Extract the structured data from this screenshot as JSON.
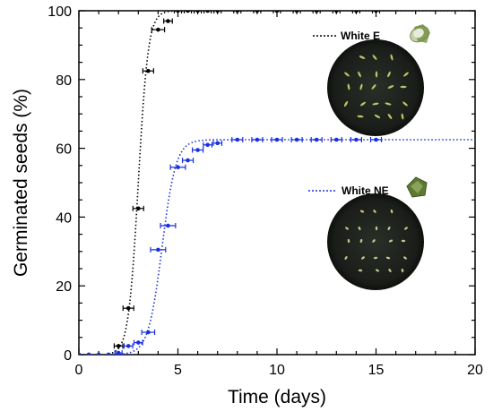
{
  "chart_data": {
    "type": "scatter",
    "xlabel": "Time (days)",
    "ylabel": "Germinated seeds (%)",
    "xlim": [
      0,
      20
    ],
    "ylim": [
      0,
      100
    ],
    "x_ticks": [
      0,
      5,
      10,
      15,
      20
    ],
    "y_ticks": [
      0,
      20,
      40,
      60,
      80,
      100
    ],
    "grid": false,
    "legend_position": "right",
    "series": [
      {
        "name": "White E",
        "color": "#000000",
        "line_style": "dotted",
        "fit_plateau": 100,
        "fit_midpoint": 3.0,
        "fit_slope": 0.25,
        "x": [
          0,
          0.5,
          1,
          1.5,
          2,
          2.5,
          3,
          3.5,
          4,
          4.5,
          5,
          5.5,
          6,
          6.5,
          7,
          8,
          9,
          10,
          11,
          12,
          13,
          14,
          15
        ],
        "y": [
          0,
          0,
          0,
          0,
          2.5,
          13.5,
          42.5,
          82.5,
          94.5,
          97,
          100,
          100,
          100,
          100,
          100,
          100,
          100,
          100,
          100,
          100,
          100,
          100,
          100
        ],
        "error": [
          0,
          0,
          0,
          0,
          0.4,
          0.5,
          0.5,
          0.5,
          0.6,
          0.4,
          0.3,
          0.3,
          0.2,
          0.2,
          0.2,
          0.2,
          0.2,
          0.2,
          0.2,
          0.2,
          0.2,
          0.2,
          0.2
        ]
      },
      {
        "name": "White NE",
        "color": "#1a2fe0",
        "line_style": "dotted",
        "fit_plateau": 62.5,
        "fit_midpoint": 4.2,
        "fit_slope": 0.35,
        "x": [
          0,
          0.5,
          1,
          1.5,
          2,
          2.5,
          3,
          3.5,
          4,
          4.5,
          5,
          5.5,
          6,
          6.5,
          7,
          8,
          9,
          10,
          11,
          12,
          13,
          14,
          15
        ],
        "y": [
          0,
          0,
          0,
          0,
          0.5,
          2.5,
          3.5,
          6.5,
          30.5,
          37.5,
          54.5,
          56.5,
          59.5,
          61,
          61.5,
          62.5,
          62.5,
          62.5,
          62.5,
          62.5,
          62.5,
          62.5,
          62.5
        ],
        "error": [
          0,
          0,
          0,
          0,
          0.3,
          0.4,
          0.4,
          0.6,
          0.7,
          0.7,
          0.7,
          0.5,
          0.5,
          0.4,
          0.4,
          0.5,
          0.5,
          0.5,
          0.5,
          0.5,
          0.5,
          0.5,
          0.5
        ]
      }
    ],
    "insets": [
      {
        "name": "White E",
        "description": "petri dish photo"
      },
      {
        "name": "White NE",
        "description": "petri dish photo"
      }
    ]
  }
}
